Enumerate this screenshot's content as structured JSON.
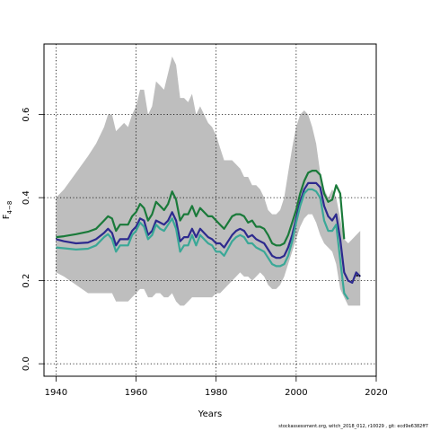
{
  "chart_data": {
    "type": "line",
    "xlabel": "Years",
    "ylabel_main": "F",
    "ylabel_sub": "4−8",
    "xlim": [
      1937,
      2020
    ],
    "ylim": [
      -0.03,
      0.77
    ],
    "x_ticks": [
      1940,
      1960,
      1980,
      2000,
      2020
    ],
    "y_ticks": [
      0.0,
      0.2,
      0.4,
      0.6
    ],
    "y_tick_labels": [
      "0.0",
      "0.2",
      "0.4",
      "0.6"
    ],
    "grid": true,
    "grid_style": "dotted",
    "band": {
      "color": "#bebebe",
      "x": [
        1940,
        1942,
        1945,
        1948,
        1950,
        1952,
        1953,
        1954,
        1955,
        1957,
        1958,
        1959,
        1960,
        1961,
        1962,
        1963,
        1964,
        1965,
        1966,
        1967,
        1968,
        1969,
        1970,
        1971,
        1972,
        1973,
        1974,
        1975,
        1976,
        1978,
        1979,
        1980,
        1981,
        1982,
        1984,
        1985,
        1986,
        1987,
        1988,
        1989,
        1990,
        1991,
        1992,
        1993,
        1994,
        1995,
        1996,
        1997,
        1998,
        1999,
        2000,
        2001,
        2002,
        2003,
        2004,
        2005,
        2006,
        2007,
        2008,
        2009,
        2010,
        2011,
        2012,
        2013,
        2014,
        2015,
        2016
      ],
      "upper": [
        0.4,
        0.42,
        0.46,
        0.5,
        0.53,
        0.57,
        0.6,
        0.6,
        0.56,
        0.58,
        0.57,
        0.6,
        0.62,
        0.66,
        0.66,
        0.6,
        0.62,
        0.68,
        0.67,
        0.66,
        0.7,
        0.74,
        0.72,
        0.64,
        0.64,
        0.63,
        0.65,
        0.6,
        0.62,
        0.58,
        0.57,
        0.55,
        0.52,
        0.49,
        0.49,
        0.48,
        0.47,
        0.45,
        0.45,
        0.43,
        0.43,
        0.42,
        0.4,
        0.37,
        0.36,
        0.36,
        0.37,
        0.4,
        0.46,
        0.52,
        0.57,
        0.6,
        0.61,
        0.6,
        0.57,
        0.53,
        0.46,
        0.42,
        0.4,
        0.42,
        0.4,
        0.35,
        0.3,
        0.29,
        0.3,
        0.31,
        0.32
      ],
      "lower": [
        0.22,
        0.21,
        0.19,
        0.17,
        0.17,
        0.17,
        0.17,
        0.17,
        0.15,
        0.15,
        0.15,
        0.16,
        0.17,
        0.18,
        0.18,
        0.16,
        0.16,
        0.17,
        0.17,
        0.16,
        0.16,
        0.17,
        0.15,
        0.14,
        0.14,
        0.15,
        0.16,
        0.16,
        0.16,
        0.16,
        0.16,
        0.17,
        0.17,
        0.18,
        0.2,
        0.21,
        0.22,
        0.21,
        0.21,
        0.2,
        0.21,
        0.22,
        0.21,
        0.19,
        0.18,
        0.18,
        0.19,
        0.21,
        0.24,
        0.27,
        0.3,
        0.33,
        0.35,
        0.36,
        0.36,
        0.34,
        0.31,
        0.29,
        0.28,
        0.27,
        0.24,
        0.18,
        0.16,
        0.14,
        0.14,
        0.14,
        0.14
      ]
    },
    "series": [
      {
        "color": "#1a7a3a",
        "width": 2.2,
        "x": [
          1940,
          1942,
          1945,
          1948,
          1950,
          1952,
          1953,
          1954,
          1955,
          1956,
          1957,
          1958,
          1959,
          1960,
          1961,
          1962,
          1963,
          1964,
          1965,
          1966,
          1967,
          1968,
          1969,
          1970,
          1971,
          1972,
          1973,
          1974,
          1975,
          1976,
          1978,
          1979,
          1980,
          1981,
          1982,
          1984,
          1985,
          1986,
          1987,
          1988,
          1989,
          1990,
          1991,
          1992,
          1993,
          1994,
          1995,
          1996,
          1997,
          1998,
          1999,
          2000,
          2001,
          2002,
          2003,
          2004,
          2005,
          2006,
          2007,
          2008,
          2009,
          2010,
          2011,
          2012
        ],
        "values": [
          0.305,
          0.307,
          0.312,
          0.318,
          0.325,
          0.345,
          0.355,
          0.35,
          0.32,
          0.335,
          0.335,
          0.335,
          0.355,
          0.365,
          0.385,
          0.375,
          0.345,
          0.36,
          0.39,
          0.38,
          0.37,
          0.385,
          0.415,
          0.395,
          0.345,
          0.36,
          0.36,
          0.38,
          0.355,
          0.375,
          0.355,
          0.355,
          0.345,
          0.335,
          0.325,
          0.355,
          0.36,
          0.36,
          0.355,
          0.34,
          0.345,
          0.33,
          0.33,
          0.325,
          0.31,
          0.29,
          0.285,
          0.285,
          0.29,
          0.31,
          0.34,
          0.37,
          0.41,
          0.44,
          0.46,
          0.465,
          0.465,
          0.455,
          0.41,
          0.39,
          0.395,
          0.43,
          0.41,
          0.3
        ]
      },
      {
        "color": "#2d2a8e",
        "width": 2.2,
        "x": [
          1940,
          1942,
          1945,
          1948,
          1950,
          1952,
          1953,
          1954,
          1955,
          1956,
          1957,
          1958,
          1959,
          1960,
          1961,
          1962,
          1963,
          1964,
          1965,
          1966,
          1967,
          1968,
          1969,
          1970,
          1971,
          1972,
          1973,
          1974,
          1975,
          1976,
          1978,
          1979,
          1980,
          1981,
          1982,
          1984,
          1985,
          1986,
          1987,
          1988,
          1989,
          1990,
          1991,
          1992,
          1993,
          1994,
          1995,
          1996,
          1997,
          1998,
          1999,
          2000,
          2001,
          2002,
          2003,
          2004,
          2005,
          2006,
          2007,
          2008,
          2009,
          2010,
          2011,
          2012,
          2013,
          2014,
          2015,
          2016
        ],
        "values": [
          0.3,
          0.295,
          0.29,
          0.292,
          0.3,
          0.315,
          0.325,
          0.315,
          0.285,
          0.3,
          0.3,
          0.3,
          0.32,
          0.33,
          0.35,
          0.345,
          0.31,
          0.32,
          0.345,
          0.34,
          0.335,
          0.345,
          0.365,
          0.345,
          0.295,
          0.305,
          0.305,
          0.325,
          0.305,
          0.325,
          0.305,
          0.3,
          0.29,
          0.29,
          0.28,
          0.31,
          0.32,
          0.325,
          0.32,
          0.305,
          0.31,
          0.3,
          0.295,
          0.29,
          0.275,
          0.26,
          0.255,
          0.255,
          0.26,
          0.28,
          0.31,
          0.35,
          0.39,
          0.42,
          0.435,
          0.435,
          0.435,
          0.425,
          0.38,
          0.355,
          0.345,
          0.36,
          0.3,
          0.22,
          0.2,
          0.195,
          0.22,
          0.21
        ]
      },
      {
        "color": "#3aa897",
        "width": 2.2,
        "x": [
          1940,
          1942,
          1945,
          1948,
          1950,
          1952,
          1953,
          1954,
          1955,
          1956,
          1957,
          1958,
          1959,
          1960,
          1961,
          1962,
          1963,
          1964,
          1965,
          1966,
          1967,
          1968,
          1969,
          1970,
          1971,
          1972,
          1973,
          1974,
          1975,
          1976,
          1978,
          1979,
          1980,
          1981,
          1982,
          1984,
          1985,
          1986,
          1987,
          1988,
          1989,
          1990,
          1991,
          1992,
          1993,
          1994,
          1995,
          1996,
          1997,
          1998,
          1999,
          2000,
          2001,
          2002,
          2003,
          2004,
          2005,
          2006,
          2007,
          2008,
          2009,
          2010,
          2011,
          2012,
          2013
        ],
        "values": [
          0.28,
          0.278,
          0.275,
          0.277,
          0.285,
          0.305,
          0.312,
          0.3,
          0.27,
          0.285,
          0.285,
          0.285,
          0.31,
          0.32,
          0.34,
          0.33,
          0.3,
          0.31,
          0.335,
          0.325,
          0.32,
          0.335,
          0.35,
          0.325,
          0.27,
          0.285,
          0.285,
          0.31,
          0.285,
          0.31,
          0.29,
          0.285,
          0.27,
          0.27,
          0.26,
          0.295,
          0.305,
          0.31,
          0.305,
          0.29,
          0.29,
          0.28,
          0.275,
          0.27,
          0.255,
          0.24,
          0.235,
          0.235,
          0.24,
          0.26,
          0.295,
          0.34,
          0.38,
          0.41,
          0.42,
          0.42,
          0.415,
          0.4,
          0.345,
          0.32,
          0.32,
          0.335,
          0.25,
          0.17,
          0.155
        ]
      }
    ],
    "line_end_tail": {
      "color": "#000000",
      "x": [
        2015,
        2016
      ],
      "values": [
        0.212,
        0.212
      ]
    }
  },
  "footer_text": "stockassessment.org, witch_2018_012, r10029 , git: ecd9e6382ff7"
}
